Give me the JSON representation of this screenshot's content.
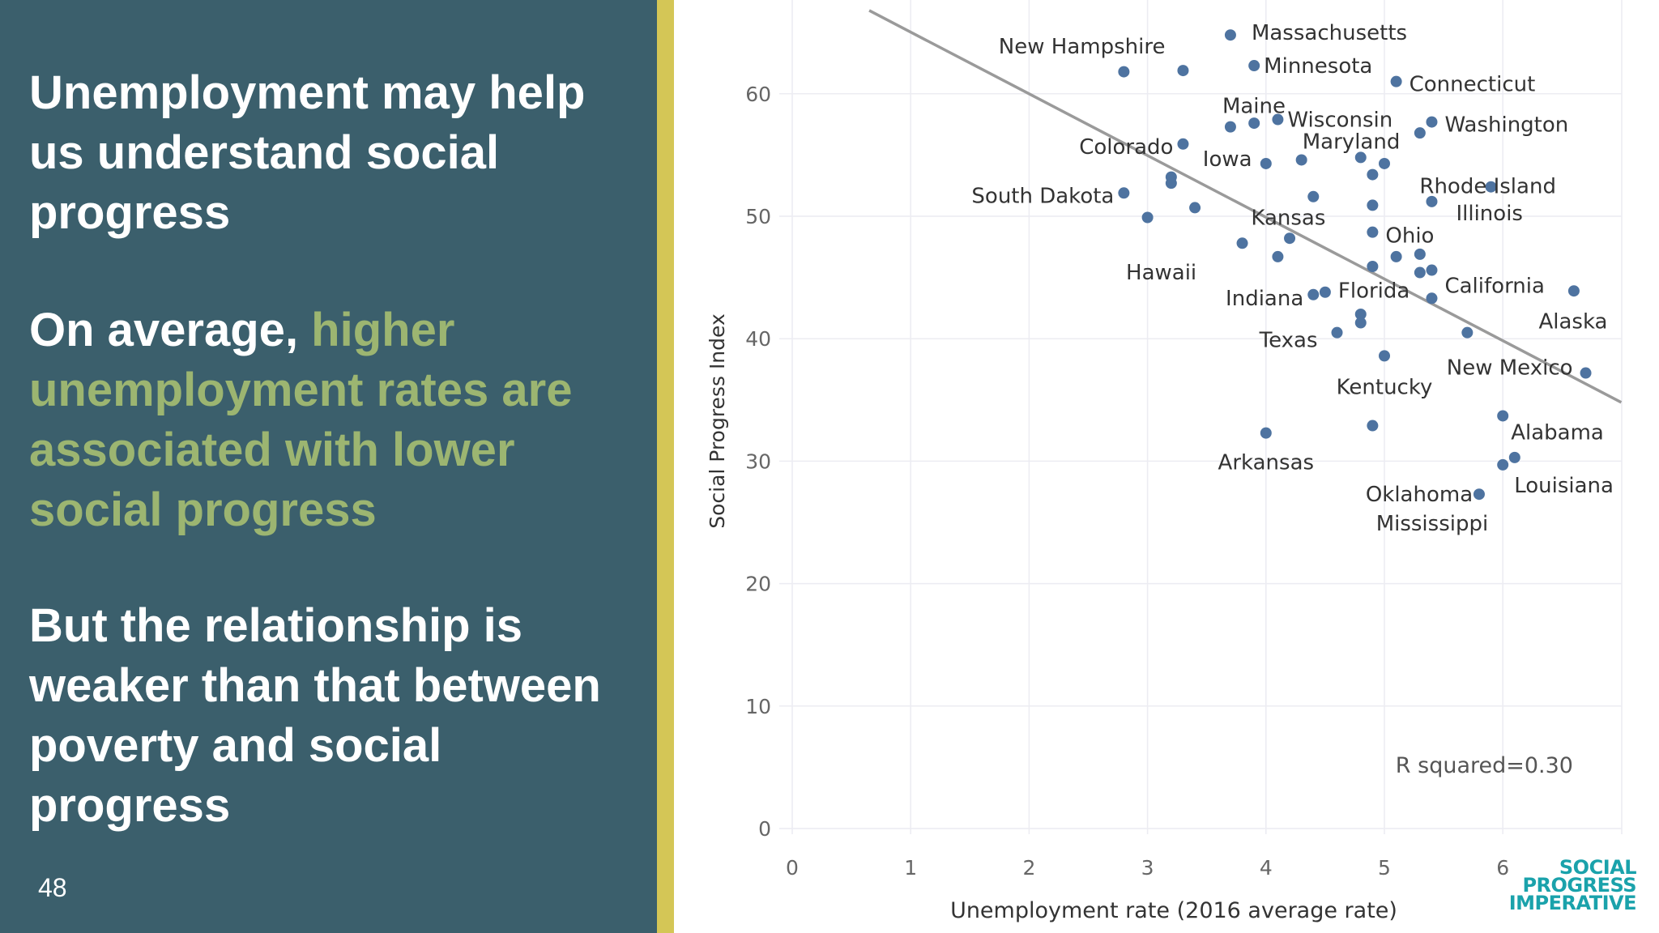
{
  "slide": {
    "heading1": "Unemployment may help us understand social progress",
    "heading2_prefix": "On average, ",
    "heading2_highlight": "higher unemployment rates are associated with lower social progress",
    "heading3": "But the relationship is weaker than that between poverty and social progress",
    "slide_number": "48",
    "colors": {
      "panel": "#3b5f6c",
      "accent_bar": "#d4c656",
      "highlight": "#9cb571",
      "points": "#4e73a0",
      "trend": "#9a9a9a",
      "logo": "#1aa2ab"
    }
  },
  "logo": {
    "line1": "SOCIAL",
    "line2": "PROGRESS",
    "line3": "IMPERATIVE"
  },
  "chart_data": {
    "type": "scatter",
    "xlabel": "Unemployment rate (2016 average rate)",
    "ylabel": "Social Progress Index",
    "xlim": [
      0,
      6.8
    ],
    "ylim": [
      0,
      67
    ],
    "x_ticks": [
      0,
      1,
      2,
      3,
      4,
      5,
      6
    ],
    "y_ticks": [
      0,
      10,
      20,
      30,
      40,
      50,
      60
    ],
    "grid": true,
    "annotation": "R squared=0.30",
    "trendline": {
      "x": [
        0.65,
        7.0
      ],
      "y": [
        66.8,
        34.8
      ]
    },
    "points": [
      {
        "x": 2.8,
        "y": 61.8,
        "label": ""
      },
      {
        "x": 3.3,
        "y": 61.9,
        "label": "New Hampshire"
      },
      {
        "x": 3.7,
        "y": 64.8,
        "label": "Massachusetts"
      },
      {
        "x": 3.9,
        "y": 62.3,
        "label": "Minnesota"
      },
      {
        "x": 5.1,
        "y": 61.0,
        "label": "Connecticut"
      },
      {
        "x": 3.7,
        "y": 57.3,
        "label": "Maine"
      },
      {
        "x": 3.9,
        "y": 57.6,
        "label": ""
      },
      {
        "x": 4.1,
        "y": 57.9,
        "label": "Wisconsin"
      },
      {
        "x": 5.4,
        "y": 57.7,
        "label": "Washington"
      },
      {
        "x": 5.3,
        "y": 56.8,
        "label": ""
      },
      {
        "x": 3.3,
        "y": 55.9,
        "label": "Colorado"
      },
      {
        "x": 4.0,
        "y": 54.3,
        "label": "Iowa"
      },
      {
        "x": 4.3,
        "y": 54.6,
        "label": ""
      },
      {
        "x": 4.8,
        "y": 54.8,
        "label": "Maryland"
      },
      {
        "x": 5.0,
        "y": 54.3,
        "label": ""
      },
      {
        "x": 4.9,
        "y": 53.4,
        "label": "Rhode Island"
      },
      {
        "x": 3.2,
        "y": 53.2,
        "label": ""
      },
      {
        "x": 3.2,
        "y": 52.7,
        "label": ""
      },
      {
        "x": 2.8,
        "y": 51.9,
        "label": "South Dakota"
      },
      {
        "x": 5.9,
        "y": 52.4,
        "label": ""
      },
      {
        "x": 4.4,
        "y": 51.6,
        "label": ""
      },
      {
        "x": 5.4,
        "y": 51.2,
        "label": "Illinois"
      },
      {
        "x": 3.4,
        "y": 50.7,
        "label": ""
      },
      {
        "x": 4.9,
        "y": 50.9,
        "label": "Kansas"
      },
      {
        "x": 3.0,
        "y": 49.9,
        "label": ""
      },
      {
        "x": 4.9,
        "y": 48.7,
        "label": "Ohio"
      },
      {
        "x": 4.2,
        "y": 48.2,
        "label": "Hawaii"
      },
      {
        "x": 3.8,
        "y": 47.8,
        "label": ""
      },
      {
        "x": 5.3,
        "y": 46.9,
        "label": ""
      },
      {
        "x": 4.1,
        "y": 46.7,
        "label": ""
      },
      {
        "x": 5.1,
        "y": 46.7,
        "label": ""
      },
      {
        "x": 4.9,
        "y": 45.9,
        "label": ""
      },
      {
        "x": 5.3,
        "y": 45.4,
        "label": ""
      },
      {
        "x": 5.4,
        "y": 45.6,
        "label": "California"
      },
      {
        "x": 6.6,
        "y": 43.9,
        "label": ""
      },
      {
        "x": 4.5,
        "y": 43.8,
        "label": "Florida"
      },
      {
        "x": 4.4,
        "y": 43.6,
        "label": "Indiana"
      },
      {
        "x": 5.4,
        "y": 43.3,
        "label": "Alaska"
      },
      {
        "x": 4.8,
        "y": 42.0,
        "label": ""
      },
      {
        "x": 4.8,
        "y": 41.3,
        "label": ""
      },
      {
        "x": 4.6,
        "y": 40.5,
        "label": "Texas"
      },
      {
        "x": 5.7,
        "y": 40.5,
        "label": ""
      },
      {
        "x": 5.0,
        "y": 38.6,
        "label": "Kentucky"
      },
      {
        "x": 6.7,
        "y": 37.2,
        "label": "New Mexico"
      },
      {
        "x": 6.0,
        "y": 33.7,
        "label": "Alabama"
      },
      {
        "x": 4.9,
        "y": 32.9,
        "label": ""
      },
      {
        "x": 4.0,
        "y": 32.3,
        "label": "Arkansas"
      },
      {
        "x": 6.1,
        "y": 30.3,
        "label": "Oklahoma"
      },
      {
        "x": 6.0,
        "y": 29.7,
        "label": "Louisiana"
      },
      {
        "x": 5.8,
        "y": 27.3,
        "label": "Mississippi"
      }
    ]
  }
}
